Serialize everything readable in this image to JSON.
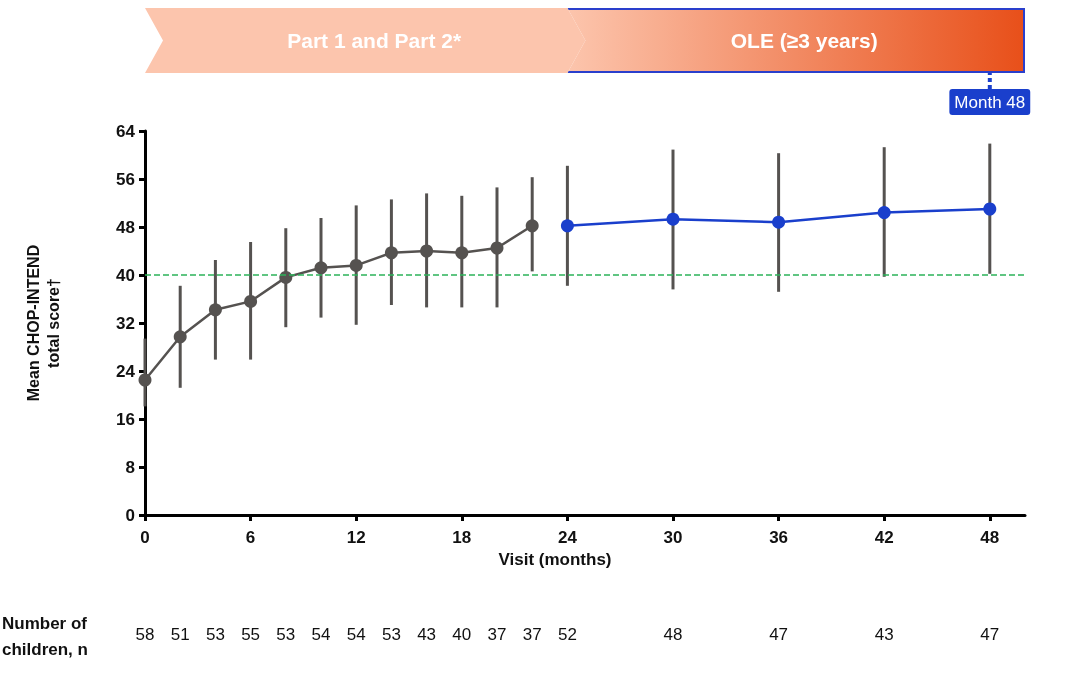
{
  "chart_data": {
    "type": "line",
    "xlabel": "Visit (months)",
    "ylabel": "Mean CHOP-INTEND\ntotal score†",
    "xlim": [
      0,
      50
    ],
    "xticks": [
      0,
      6,
      12,
      18,
      24,
      30,
      36,
      42,
      48
    ],
    "ylim": [
      0,
      64
    ],
    "yticks": [
      0,
      8,
      16,
      24,
      32,
      40,
      48,
      56,
      64
    ],
    "marker": "circle",
    "line_style": "solid",
    "grid": false,
    "series": [
      {
        "color": "#555250",
        "x": [
          0,
          2,
          4,
          6,
          8,
          10,
          12,
          14,
          16,
          18,
          20,
          22
        ],
        "values": [
          22.5,
          29.7,
          34.2,
          35.6,
          39.6,
          41.2,
          41.6,
          43.7,
          44.0,
          43.7,
          44.5,
          48.2
        ],
        "errors": [
          [
            18.1,
            29.4
          ],
          [
            21.2,
            38.2
          ],
          [
            25.9,
            42.5
          ],
          [
            25.9,
            45.5
          ],
          [
            31.3,
            47.8
          ],
          [
            32.9,
            49.5
          ],
          [
            31.7,
            51.6
          ],
          [
            35.0,
            52.6
          ],
          [
            34.6,
            53.6
          ],
          [
            34.6,
            53.2
          ],
          [
            34.6,
            54.6
          ],
          [
            40.6,
            56.3
          ]
        ]
      },
      {
        "color": "#1a3fcc",
        "x": [
          24,
          30,
          36,
          42,
          48
        ],
        "values": [
          48.2,
          49.3,
          48.8,
          50.4,
          51.0
        ],
        "errors": [
          [
            38.2,
            58.2
          ],
          [
            37.6,
            60.9
          ],
          [
            37.2,
            60.3
          ],
          [
            39.7,
            61.3
          ],
          [
            40.2,
            61.9
          ]
        ]
      }
    ],
    "ref_lines": [
      {
        "axis": "y",
        "value": 40,
        "color": "#2db35a",
        "line_style": "dashed"
      },
      {
        "axis": "x",
        "value": 48,
        "label": "Month 48",
        "color": "#1a3fcc",
        "line_style": "dotted"
      }
    ],
    "annotations": [
      "Part 1 and Part 2*",
      "OLE (≥3 years)",
      "Number of children, n",
      "58",
      "51",
      "53",
      "55",
      "53",
      "54",
      "54",
      "53",
      "43",
      "40",
      "37",
      "37",
      "52",
      "48",
      "47",
      "43",
      "47"
    ]
  }
}
